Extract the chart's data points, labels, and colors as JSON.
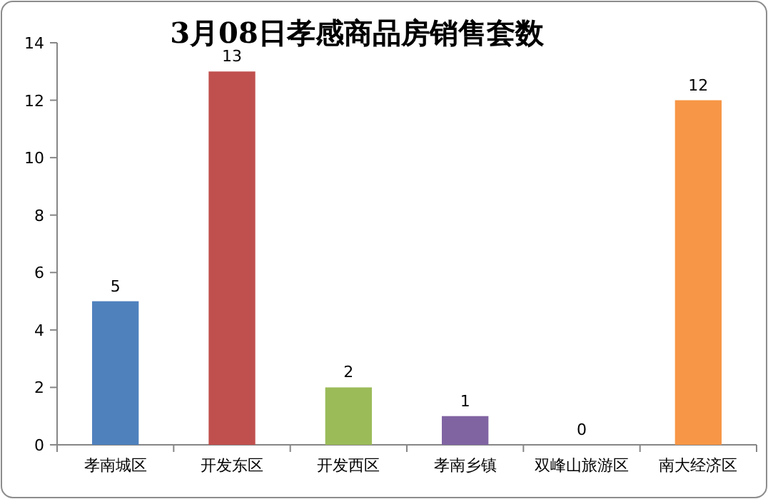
{
  "chart_data": {
    "type": "bar",
    "title": "3月08日孝感商品房销售套数",
    "categories": [
      "孝南城区",
      "开发东区",
      "开发西区",
      "孝南乡镇",
      "双峰山旅游区",
      "南大经济区"
    ],
    "values": [
      5,
      13,
      2,
      1,
      0,
      12
    ],
    "colors": [
      "#4f81bd",
      "#c0504d",
      "#9bbb59",
      "#8064a2",
      "#4bacc6",
      "#f79646"
    ],
    "ylim": [
      0,
      14
    ],
    "yticks": [
      0,
      2,
      4,
      6,
      8,
      10,
      12,
      14
    ],
    "data_labels": true
  }
}
